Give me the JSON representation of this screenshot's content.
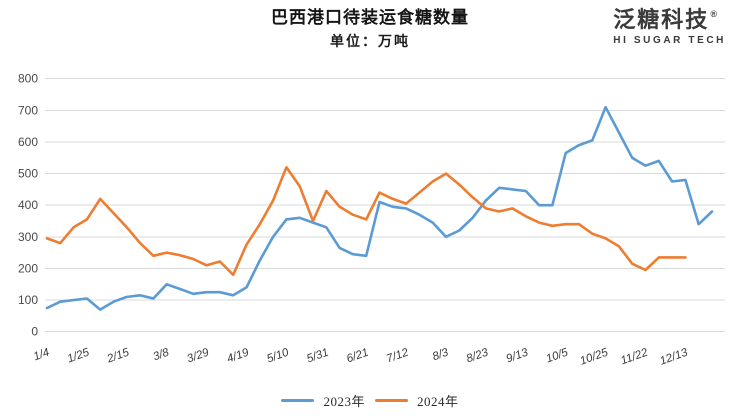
{
  "header": {
    "title": "巴西港口待装运食糖数量",
    "subtitle": "单位：万吨"
  },
  "logo": {
    "name": "泛糖科技",
    "registered_mark": "®",
    "tagline": "HI SUGAR TECH"
  },
  "legend": [
    {
      "label": "2023年",
      "color": "#5B9BD5"
    },
    {
      "label": "2024年",
      "color": "#ED7D31"
    }
  ],
  "chart_data": {
    "type": "line",
    "title": "巴西港口待装运食糖数量",
    "subtitle_unit": "单位：万吨",
    "xlabel": "",
    "ylabel": "",
    "ylim": [
      0,
      800
    ],
    "ytick_interval": 100,
    "ytick_labels": [
      "0",
      "100",
      "200",
      "300",
      "400",
      "500",
      "600",
      "700",
      "800"
    ],
    "grid": "horizontal",
    "legend_position": "bottom",
    "x_tick_labels": [
      "1/4",
      "1/25",
      "2/15",
      "3/8",
      "3/29",
      "4/19",
      "5/10",
      "5/31",
      "6/21",
      "7/12",
      "8/3",
      "8/23",
      "9/13",
      "10/5",
      "10/25",
      "11/22",
      "12/13"
    ],
    "x_tick_point_indices": [
      0,
      3,
      6,
      9,
      12,
      15,
      18,
      21,
      24,
      27,
      30,
      33,
      36,
      39,
      42,
      45,
      48
    ],
    "points_per_label_gap": 3,
    "series": [
      {
        "name": "2023年",
        "color": "#5B9BD5",
        "values": [
          75,
          95,
          100,
          105,
          70,
          95,
          110,
          115,
          105,
          150,
          135,
          120,
          125,
          125,
          115,
          140,
          225,
          300,
          355,
          360,
          345,
          330,
          265,
          245,
          240,
          410,
          395,
          390,
          370,
          345,
          300,
          320,
          360,
          415,
          455,
          450,
          445,
          400,
          400,
          565,
          590,
          605,
          710,
          630,
          550,
          525,
          540,
          475,
          480,
          340,
          380
        ]
      },
      {
        "name": "2024年",
        "color": "#ED7D31",
        "values": [
          295,
          280,
          330,
          355,
          420,
          375,
          330,
          280,
          240,
          250,
          242,
          230,
          210,
          222,
          180,
          275,
          340,
          415,
          520,
          460,
          350,
          445,
          395,
          370,
          355,
          440,
          420,
          405,
          440,
          475,
          500,
          465,
          425,
          390,
          380,
          390,
          365,
          345,
          335,
          340,
          340,
          310,
          295,
          270,
          215,
          195,
          235,
          235,
          235
        ]
      }
    ],
    "gridline_color": "#d9d9d9",
    "axis_label_color": "#4a4a4a"
  }
}
